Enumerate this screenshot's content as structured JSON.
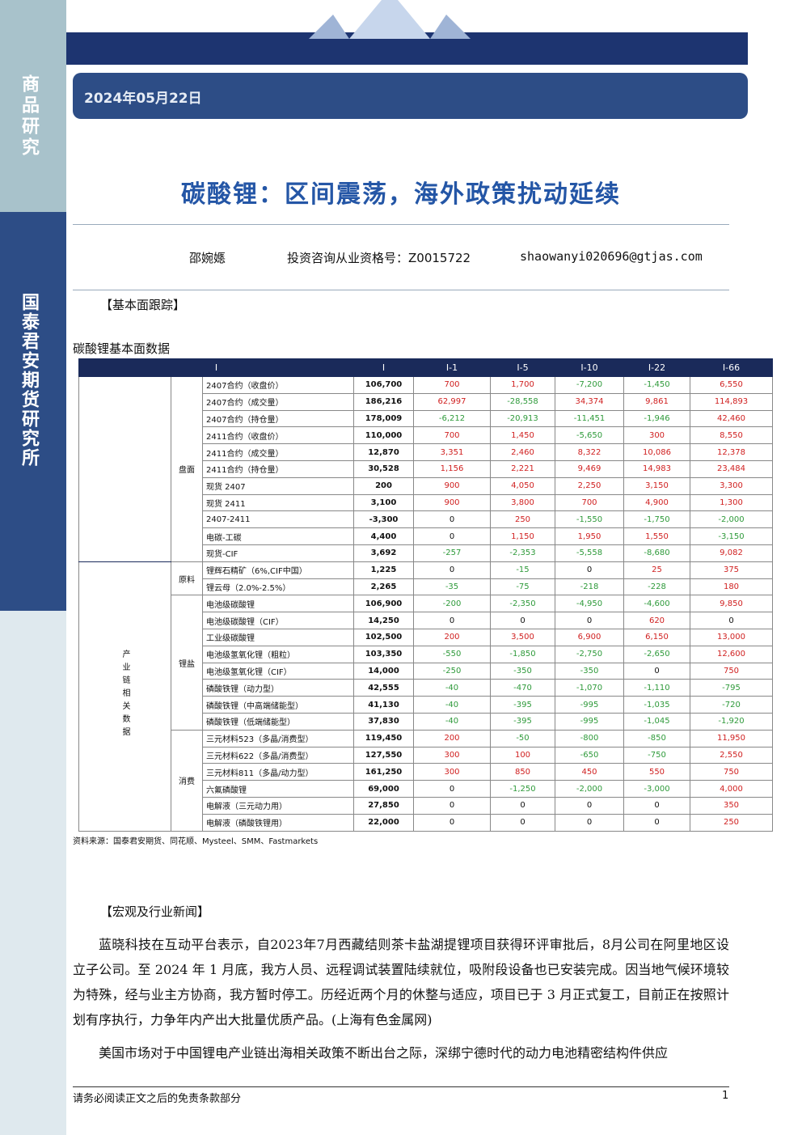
{
  "sidebar": {
    "top": "商品研究",
    "bottom": "国泰君安期货研究所"
  },
  "header": {
    "date": "2024年05月22日",
    "title": "碳酸锂：区间震荡，海外政策扰动延续"
  },
  "authors": {
    "name": "邵婉嫕",
    "license": "投资咨询从业资格号：Z0015722",
    "email": "shaowanyi020696@gtjas.com"
  },
  "section1": "【基本面跟踪】",
  "table": {
    "caption": "碳酸锂基本面数据",
    "header": [
      "I",
      "I",
      "I-1",
      "I-5",
      "I-10",
      "I-22",
      "I-66"
    ],
    "outer_group": "产业链相关数据",
    "groups": [
      {
        "label": "盘面",
        "rows": 11
      },
      {
        "label": "原料",
        "rows": 2
      },
      {
        "label": "锂盐",
        "rows": 8
      },
      {
        "label": "消费",
        "rows": 6
      }
    ],
    "rows": [
      [
        "2407合约（收盘价）",
        "106,700",
        "700",
        "1,700",
        "-7,200",
        "-1,450",
        "6,550"
      ],
      [
        "2407合约（成交量）",
        "186,216",
        "62,997",
        "-28,558",
        "34,374",
        "9,861",
        "114,893"
      ],
      [
        "2407合约（持仓量）",
        "178,009",
        "-6,212",
        "-20,913",
        "-11,451",
        "-1,946",
        "42,460"
      ],
      [
        "2411合约（收盘价）",
        "110,000",
        "700",
        "1,450",
        "-5,650",
        "300",
        "8,550"
      ],
      [
        "2411合约（成交量）",
        "12,870",
        "3,351",
        "2,460",
        "8,322",
        "10,086",
        "12,378"
      ],
      [
        "2411合约（持仓量）",
        "30,528",
        "1,156",
        "2,221",
        "9,469",
        "14,983",
        "23,484"
      ],
      [
        "现货 2407",
        "200",
        "900",
        "4,050",
        "2,250",
        "3,150",
        "3,300"
      ],
      [
        "现货 2411",
        "3,100",
        "900",
        "3,800",
        "700",
        "4,900",
        "1,300"
      ],
      [
        "2407-2411",
        "-3,300",
        "0",
        "250",
        "-1,550",
        "-1,750",
        "-2,000"
      ],
      [
        "电碳-工碳",
        "4,400",
        "0",
        "1,150",
        "1,950",
        "1,550",
        "-3,150"
      ],
      [
        "现货-CIF",
        "3,692",
        "-257",
        "-2,353",
        "-5,558",
        "-8,680",
        "9,082"
      ],
      [
        "锂辉石精矿（6%,CIF中国）",
        "1,225",
        "0",
        "-15",
        "0",
        "25",
        "375"
      ],
      [
        "锂云母（2.0%-2.5%）",
        "2,265",
        "-35",
        "-75",
        "-218",
        "-228",
        "180"
      ],
      [
        "电池级碳酸锂",
        "106,900",
        "-200",
        "-2,350",
        "-4,950",
        "-4,600",
        "9,850"
      ],
      [
        "电池级碳酸锂（CIF）",
        "14,250",
        "0",
        "0",
        "0",
        "620",
        "0"
      ],
      [
        "工业级碳酸锂",
        "102,500",
        "200",
        "3,500",
        "6,900",
        "6,150",
        "13,000"
      ],
      [
        "电池级氢氧化锂（粗粒）",
        "103,350",
        "-550",
        "-1,850",
        "-2,750",
        "-2,650",
        "12,600"
      ],
      [
        "电池级氢氧化锂（CIF）",
        "14,000",
        "-250",
        "-350",
        "-350",
        "0",
        "750"
      ],
      [
        "磷酸铁锂（动力型）",
        "42,555",
        "-40",
        "-470",
        "-1,070",
        "-1,110",
        "-795"
      ],
      [
        "磷酸铁锂（中高端储能型）",
        "41,130",
        "-40",
        "-395",
        "-995",
        "-1,035",
        "-720"
      ],
      [
        "磷酸铁锂（低端储能型）",
        "37,830",
        "-40",
        "-395",
        "-995",
        "-1,045",
        "-1,920"
      ],
      [
        "三元材料523（多晶/消费型）",
        "119,450",
        "200",
        "-50",
        "-800",
        "-850",
        "11,950"
      ],
      [
        "三元材料622（多晶/消费型）",
        "127,550",
        "300",
        "100",
        "-650",
        "-750",
        "2,550"
      ],
      [
        "三元材料811（多晶/动力型）",
        "161,250",
        "300",
        "850",
        "450",
        "550",
        "750"
      ],
      [
        "六氟磷酸锂",
        "69,000",
        "0",
        "-1,250",
        "-2,000",
        "-3,000",
        "4,000"
      ],
      [
        "电解液（三元动力用）",
        "27,850",
        "0",
        "0",
        "0",
        "0",
        "350"
      ],
      [
        "电解液（磷酸铁锂用）",
        "22,000",
        "0",
        "0",
        "0",
        "0",
        "250"
      ]
    ],
    "source": "资料来源：国泰君安期货、同花顺、Mysteel、SMM、Fastmarkets"
  },
  "section2": "【宏观及行业新闻】",
  "paragraphs": [
    "蓝晓科技在互动平台表示，自2023年7月西藏结则茶卡盐湖提锂项目获得环评审批后，8月公司在阿里地区设立子公司。至 2024 年 1 月底，我方人员、远程调试装置陆续就位，吸附段设备也已安装完成。因当地气候环境较为特殊，经与业主方协商，我方暂时停工。历经近两个月的休整与适应，项目已于 3 月正式复工，目前正在按照计划有序执行，力争年内产出大批量优质产品。(上海有色金属网)",
    "美国市场对于中国锂电产业链出海相关政策不断出台之际，深绑宁德时代的动力电池精密结构件供应"
  ],
  "footer": {
    "disclaimer": "请务必阅读正文之后的免责条款部分",
    "page": "1"
  }
}
